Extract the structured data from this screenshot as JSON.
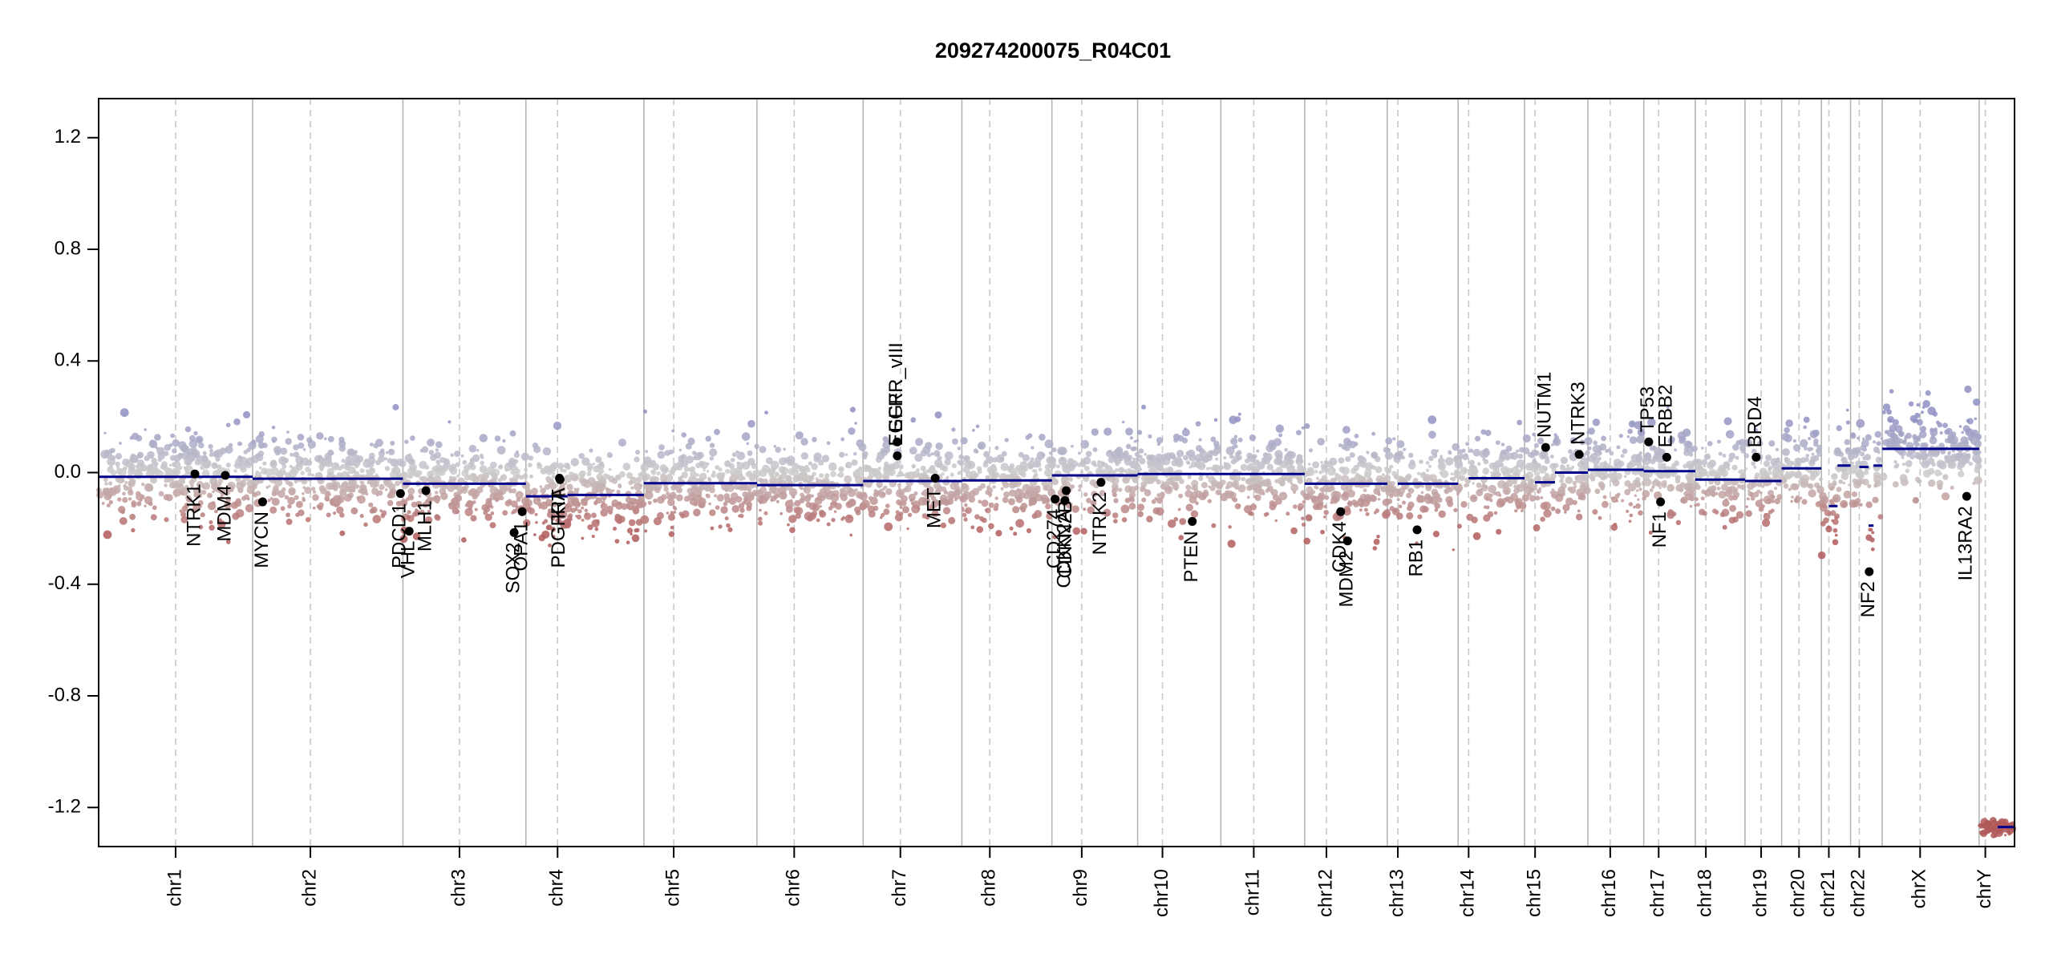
{
  "chart_data": {
    "type": "scatter",
    "title": "209274200075_R04C01",
    "xlabel": "",
    "ylabel": "",
    "ylim": [
      -1.34,
      1.34
    ],
    "yticks": [
      -1.2,
      -0.8,
      -0.4,
      0.0,
      0.4,
      0.8,
      1.2
    ],
    "ytick_labels": [
      "-1.2",
      "-0.8",
      "-0.4",
      "0.0",
      "0.4",
      "0.8",
      "1.2"
    ],
    "grid": false,
    "legend": "none",
    "colors": {
      "gain": "#8f8fc4",
      "neutral": "#cccccc",
      "loss": "#b25a5a",
      "segment": "#00008b",
      "gene_marker": "#000000",
      "boundary": "#b4b4b4",
      "centromere": "#c8c8c8"
    },
    "chromosomes": [
      {
        "label": "chr1",
        "start": 0,
        "end": 248,
        "centromere": 124,
        "segments": [
          [
            0,
            248,
            -0.015
          ]
        ]
      },
      {
        "label": "chr2",
        "start": 248,
        "end": 490,
        "centromere": 341,
        "segments": [
          [
            248,
            490,
            -0.022
          ]
        ]
      },
      {
        "label": "chr3",
        "start": 490,
        "end": 688,
        "centromere": 581,
        "segments": [
          [
            490,
            688,
            -0.04
          ]
        ]
      },
      {
        "label": "chr4",
        "start": 688,
        "end": 878,
        "centromere": 739,
        "segments": [
          [
            688,
            755,
            -0.085
          ],
          [
            755,
            878,
            -0.08
          ]
        ]
      },
      {
        "label": "chr5",
        "start": 878,
        "end": 1060,
        "centromere": 926,
        "segments": [
          [
            878,
            1060,
            -0.038
          ]
        ]
      },
      {
        "label": "chr6",
        "start": 1060,
        "end": 1231,
        "centromere": 1120,
        "segments": [
          [
            1060,
            1231,
            -0.045
          ]
        ]
      },
      {
        "label": "chr7",
        "start": 1231,
        "end": 1390,
        "centromere": 1291,
        "segments": [
          [
            1231,
            1390,
            -0.03
          ]
        ]
      },
      {
        "label": "chr8",
        "start": 1390,
        "end": 1535,
        "centromere": 1435,
        "segments": [
          [
            1390,
            1535,
            -0.028
          ]
        ]
      },
      {
        "label": "chr9",
        "start": 1535,
        "end": 1673,
        "centromere": 1583,
        "segments": [
          [
            1535,
            1673,
            -0.01
          ]
        ]
      },
      {
        "label": "chr10",
        "start": 1673,
        "end": 1807,
        "centromere": 1713,
        "segments": [
          [
            1673,
            1807,
            -0.005
          ]
        ]
      },
      {
        "label": "chr11",
        "start": 1807,
        "end": 1942,
        "centromere": 1860,
        "segments": [
          [
            1807,
            1942,
            -0.005
          ]
        ]
      },
      {
        "label": "chr12",
        "start": 1942,
        "end": 2075,
        "centromere": 1977,
        "segments": [
          [
            1942,
            2075,
            -0.04
          ]
        ]
      },
      {
        "label": "chr13",
        "start": 2075,
        "end": 2189,
        "centromere": 2092,
        "segments": [
          [
            2092,
            2189,
            -0.04
          ]
        ]
      },
      {
        "label": "chr14",
        "start": 2189,
        "end": 2296,
        "centromere": 2206,
        "segments": [
          [
            2206,
            2296,
            -0.02
          ]
        ]
      },
      {
        "label": "chr15",
        "start": 2296,
        "end": 2398,
        "centromere": 2313,
        "segments": [
          [
            2313,
            2345,
            -0.035
          ],
          [
            2345,
            2398,
            0.0
          ]
        ]
      },
      {
        "label": "chr16",
        "start": 2398,
        "end": 2488,
        "centromere": 2434,
        "segments": [
          [
            2398,
            2488,
            0.01
          ]
        ]
      },
      {
        "label": "chr17",
        "start": 2488,
        "end": 2571,
        "centromere": 2512,
        "segments": [
          [
            2488,
            2571,
            0.005
          ]
        ]
      },
      {
        "label": "chr18",
        "start": 2571,
        "end": 2651,
        "centromere": 2588,
        "segments": [
          [
            2571,
            2651,
            -0.025
          ]
        ]
      },
      {
        "label": "chr19",
        "start": 2651,
        "end": 2710,
        "centromere": 2677,
        "segments": [
          [
            2651,
            2710,
            -0.03
          ]
        ]
      },
      {
        "label": "chr20",
        "start": 2710,
        "end": 2774,
        "centromere": 2738,
        "segments": [
          [
            2710,
            2774,
            0.015
          ]
        ]
      },
      {
        "label": "chr21",
        "start": 2774,
        "end": 2821,
        "centromere": 2786,
        "segments": [
          [
            2786,
            2800,
            -0.12
          ],
          [
            2800,
            2821,
            0.025
          ]
        ]
      },
      {
        "label": "chr22",
        "start": 2821,
        "end": 2872,
        "centromere": 2835,
        "segments": [
          [
            2835,
            2850,
            0.02
          ],
          [
            2850,
            2858,
            -0.19
          ],
          [
            2858,
            2872,
            0.025
          ]
        ]
      },
      {
        "label": "chrX",
        "start": 2872,
        "end": 3028,
        "centromere": 2933,
        "segments": [
          [
            2872,
            3028,
            0.085
          ]
        ]
      },
      {
        "label": "chrY",
        "start": 3028,
        "end": 3085,
        "centromere": 3038,
        "segments": [
          [
            3058,
            3085,
            -1.27
          ]
        ]
      }
    ],
    "genes": [
      {
        "name": "NTRK1",
        "x": 155,
        "y": -0.005,
        "label_side": "below"
      },
      {
        "name": "MDM4",
        "x": 204,
        "y": -0.01,
        "label_side": "below"
      },
      {
        "name": "MYCN",
        "x": 264,
        "y": -0.105,
        "label_side": "below"
      },
      {
        "name": "PDCD1",
        "x": 486,
        "y": -0.075,
        "label_side": "below"
      },
      {
        "name": "VHL",
        "x": 500,
        "y": -0.21,
        "label_side": "below"
      },
      {
        "name": "MLH1",
        "x": 527,
        "y": -0.065,
        "label_side": "below"
      },
      {
        "name": "SOX2",
        "x": 669,
        "y": -0.215,
        "label_side": "below"
      },
      {
        "name": "OPA1",
        "x": 682,
        "y": -0.14,
        "label_side": "below"
      },
      {
        "name": "PDGFRA",
        "x": 742,
        "y": -0.02,
        "label_side": "below"
      },
      {
        "name": "KIT",
        "x": 743,
        "y": -0.025,
        "label_side": "below"
      },
      {
        "name": "EGFR_vIII",
        "x": 1286,
        "y": 0.11,
        "label_side": "above"
      },
      {
        "name": "EGFR",
        "x": 1286,
        "y": 0.06,
        "label_side": "above"
      },
      {
        "name": "MET",
        "x": 1347,
        "y": -0.02,
        "label_side": "below"
      },
      {
        "name": "CD274",
        "x": 1540,
        "y": -0.095,
        "label_side": "below"
      },
      {
        "name": "CDKN2A",
        "x": 1556,
        "y": -0.1,
        "label_side": "below"
      },
      {
        "name": "CDKN2B",
        "x": 1558,
        "y": -0.065,
        "label_side": "below"
      },
      {
        "name": "NTRK2",
        "x": 1614,
        "y": -0.035,
        "label_side": "below"
      },
      {
        "name": "PTEN",
        "x": 1761,
        "y": -0.175,
        "label_side": "below"
      },
      {
        "name": "CDK4",
        "x": 2000,
        "y": -0.14,
        "label_side": "below"
      },
      {
        "name": "MDM2",
        "x": 2011,
        "y": -0.245,
        "label_side": "below"
      },
      {
        "name": "RB1",
        "x": 2123,
        "y": -0.205,
        "label_side": "below"
      },
      {
        "name": "NUTM1",
        "x": 2330,
        "y": 0.09,
        "label_side": "above"
      },
      {
        "name": "NTRK3",
        "x": 2384,
        "y": 0.065,
        "label_side": "above"
      },
      {
        "name": "TP53",
        "x": 2496,
        "y": 0.11,
        "label_side": "above"
      },
      {
        "name": "NF1",
        "x": 2515,
        "y": -0.105,
        "label_side": "below"
      },
      {
        "name": "ERBB2",
        "x": 2525,
        "y": 0.055,
        "label_side": "above"
      },
      {
        "name": "BRD4",
        "x": 2669,
        "y": 0.055,
        "label_side": "above"
      },
      {
        "name": "NF2",
        "x": 2851,
        "y": -0.355,
        "label_side": "below"
      },
      {
        "name": "IL13RA2",
        "x": 3008,
        "y": -0.085,
        "label_side": "below"
      }
    ]
  }
}
